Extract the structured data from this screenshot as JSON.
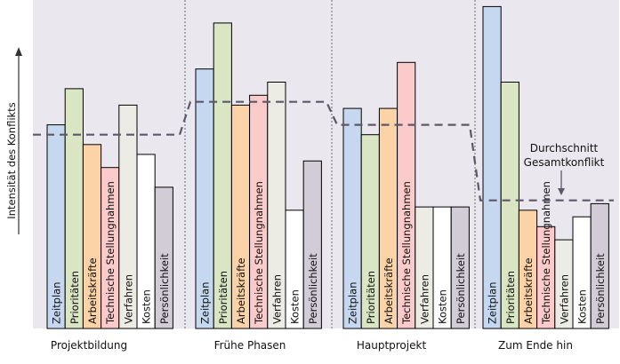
{
  "chart_data": {
    "type": "bar",
    "ylabel": "Intensität des Konflikts",
    "y_scale": "relative (no tick labels)",
    "ylim": [
      0,
      100
    ],
    "grid": false,
    "legend": "none",
    "bar_labels": [
      "Zeitplan",
      "Prioritäten",
      "Arbeitskräfte",
      "Technische Stellungnahmen",
      "Verfahren",
      "Kosten",
      "Persönlichkeit"
    ],
    "bar_colors": [
      "#c6d7f0",
      "#d9e5c3",
      "#fcd3a7",
      "#fbcaca",
      "#edece4",
      "#ffffff",
      "#d2ccd6"
    ],
    "categories": [
      "Projektbildung",
      "Frühe Phasen",
      "Hauptprojekt",
      "Zum Ende hin"
    ],
    "series": [
      {
        "values": [
          62,
          79,
          67,
          98
        ]
      },
      {
        "values": [
          73,
          93,
          59,
          75
        ]
      },
      {
        "values": [
          56,
          68,
          67,
          36
        ]
      },
      {
        "values": [
          49,
          71,
          81,
          31
        ]
      },
      {
        "values": [
          68,
          75,
          37,
          27
        ]
      },
      {
        "values": [
          53,
          36,
          37,
          34
        ]
      },
      {
        "values": [
          43,
          51,
          37,
          38
        ]
      }
    ],
    "average_line": {
      "values": [
        59,
        69,
        62,
        39
      ],
      "style": "dashed",
      "color": "#5c5868"
    },
    "annotation": {
      "text": [
        "Durchschnitt",
        "Gesamtkonflikt"
      ],
      "points_to": "average_line",
      "category": "Zum Ende hin"
    },
    "background": "#eae8ee"
  }
}
